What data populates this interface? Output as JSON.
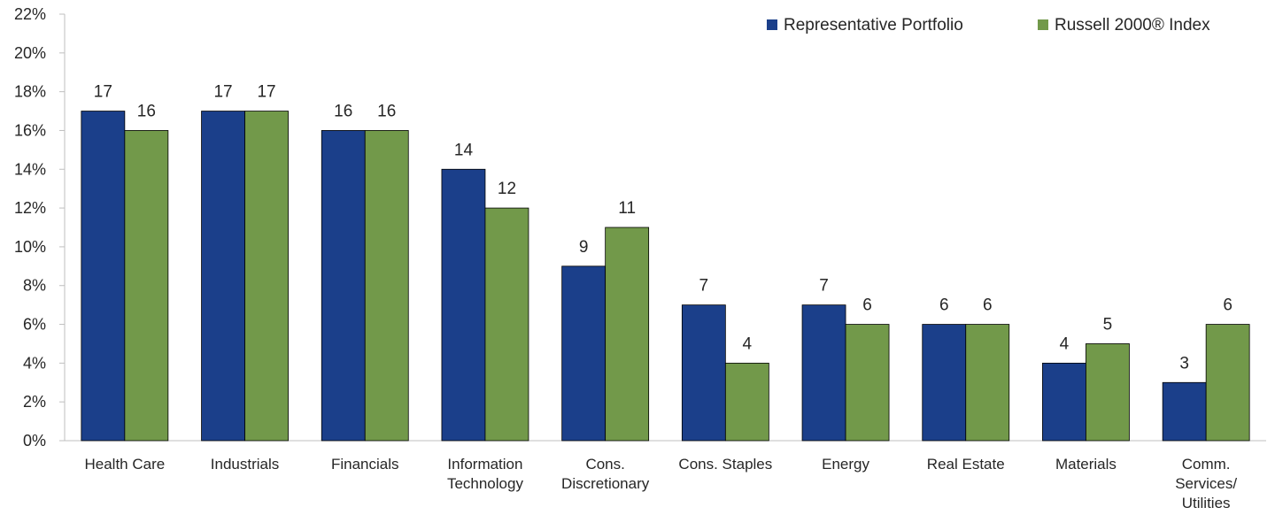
{
  "chart_data": {
    "type": "bar",
    "categories": [
      [
        "Health Care"
      ],
      [
        "Industrials"
      ],
      [
        "Financials"
      ],
      [
        "Information",
        "Technology"
      ],
      [
        "Cons.",
        "Discretionary"
      ],
      [
        "Cons. Staples"
      ],
      [
        "Energy"
      ],
      [
        "Real Estate"
      ],
      [
        "Materials"
      ],
      [
        "Comm.",
        "Services/",
        "Utilities"
      ]
    ],
    "series": [
      {
        "name": "Representative Portfolio",
        "color": "#1b3f8a",
        "values": [
          17,
          17,
          16,
          14,
          9,
          7,
          7,
          6,
          4,
          3
        ]
      },
      {
        "name": "Russell 2000® Index",
        "color": "#72994a",
        "values": [
          16,
          17,
          16,
          12,
          11,
          4,
          6,
          6,
          5,
          6
        ]
      }
    ],
    "ylim": [
      0,
      22
    ],
    "ytick_step": 2,
    "ytick_suffix": "%",
    "legend_position": "top-right",
    "grid": false
  }
}
